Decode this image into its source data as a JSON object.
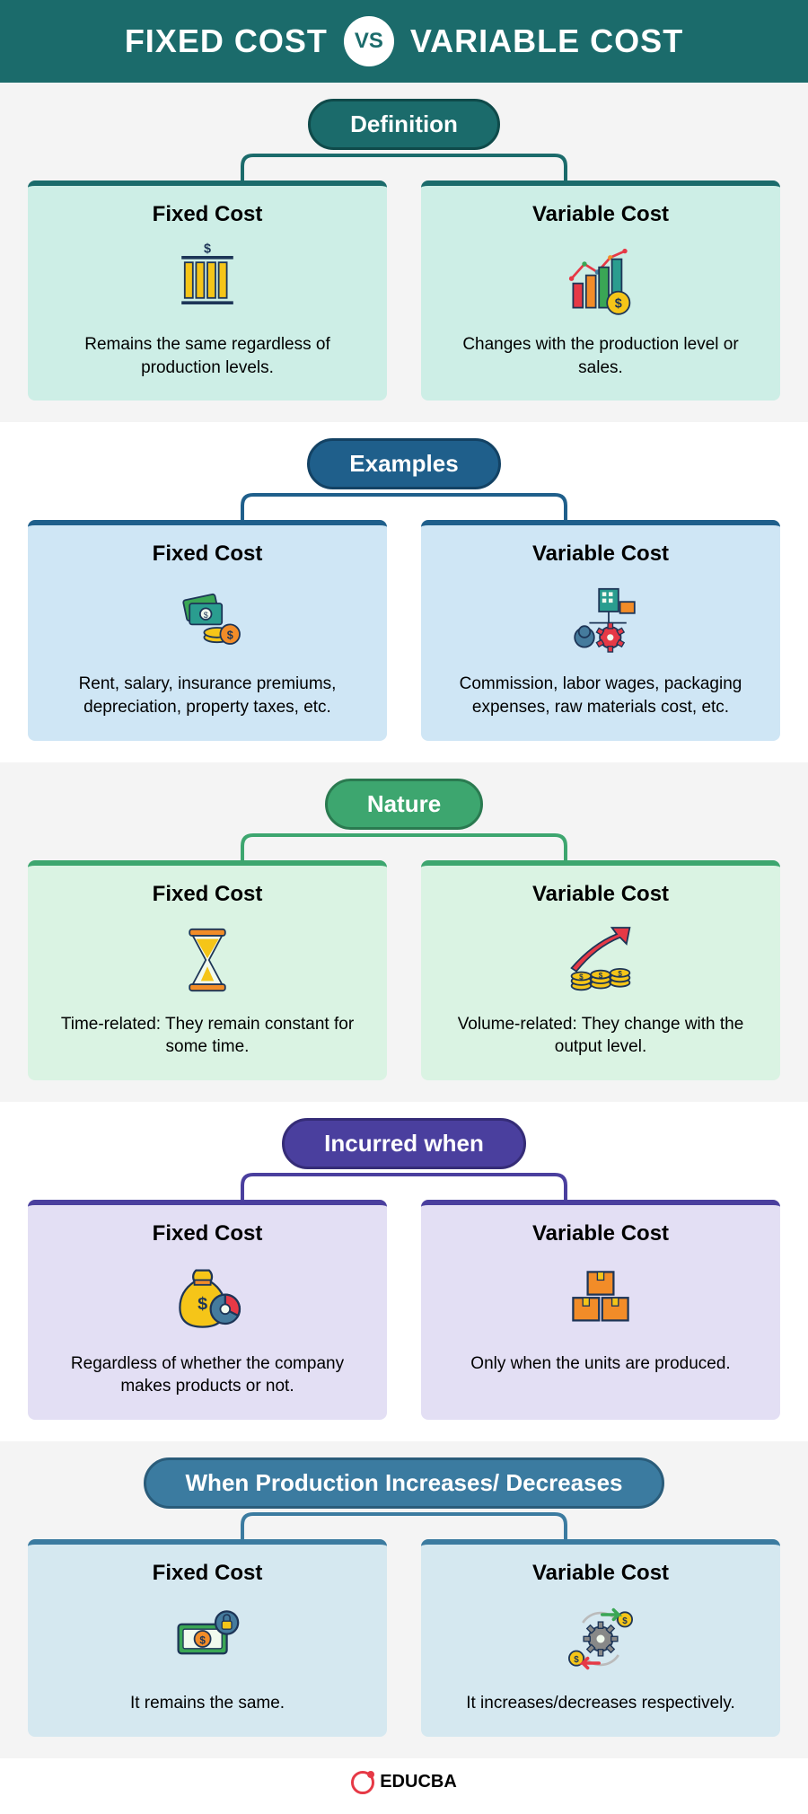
{
  "header": {
    "left": "FIXED COST",
    "vs": "VS",
    "right": "VARIABLE COST",
    "bg": "#1b6b6b",
    "text_color": "#ffffff",
    "vs_color": "#1b6b6b"
  },
  "footer": {
    "brand": "EDUCBA",
    "accent": "#e63946",
    "text_color": "#222222"
  },
  "sections": [
    {
      "label": "Definition",
      "pill_bg": "#1b6b6b",
      "pill_border": "#0f4a4a",
      "section_bg": "#f4f4f4",
      "card_bg": "#cdeee6",
      "card_border": "#1b6b6b",
      "connector_color": "#1b6b6b",
      "left": {
        "title": "Fixed Cost",
        "icon": "bars-dollar",
        "desc": "Remains the same regardless of production levels."
      },
      "right": {
        "title": "Variable Cost",
        "icon": "growth-chart",
        "desc": "Changes with the production level or sales."
      }
    },
    {
      "label": "Examples",
      "pill_bg": "#1f5f8b",
      "pill_border": "#134264",
      "section_bg": "#ffffff",
      "card_bg": "#cfe6f5",
      "card_border": "#1f5f8b",
      "connector_color": "#1f5f8b",
      "left": {
        "title": "Fixed Cost",
        "icon": "money-coins",
        "desc": "Rent, salary, insurance premiums, depreciation, property taxes, etc."
      },
      "right": {
        "title": "Variable Cost",
        "icon": "factory-gear",
        "desc": "Commission, labor wages, packaging expenses, raw materials cost, etc."
      }
    },
    {
      "label": "Nature",
      "pill_bg": "#3da66f",
      "pill_border": "#2a7a50",
      "section_bg": "#f4f4f4",
      "card_bg": "#daf3e3",
      "card_border": "#3da66f",
      "connector_color": "#3da66f",
      "left": {
        "title": "Fixed Cost",
        "icon": "hourglass",
        "desc": "Time-related: They remain constant for some time."
      },
      "right": {
        "title": "Variable Cost",
        "icon": "coins-arrow",
        "desc": "Volume-related: They change with the output level."
      }
    },
    {
      "label": "Incurred when",
      "pill_bg": "#4a3f9e",
      "pill_border": "#352c77",
      "section_bg": "#ffffff",
      "card_bg": "#e3dff4",
      "card_border": "#4a3f9e",
      "connector_color": "#4a3f9e",
      "left": {
        "title": "Fixed Cost",
        "icon": "moneybag-pie",
        "desc": "Regardless of whether the company makes products or not."
      },
      "right": {
        "title": "Variable Cost",
        "icon": "boxes",
        "desc": "Only when the units are produced."
      }
    },
    {
      "label": "When Production Increases/ Decreases",
      "pill_bg": "#3b7ba0",
      "pill_border": "#2a5c7a",
      "section_bg": "#f4f4f4",
      "card_bg": "#d5e8f0",
      "card_border": "#3b7ba0",
      "connector_color": "#3b7ba0",
      "left": {
        "title": "Fixed Cost",
        "icon": "bill-lock",
        "desc": "It remains the same."
      },
      "right": {
        "title": "Variable Cost",
        "icon": "gear-cycle",
        "desc": "It increases/decreases respectively."
      }
    }
  ],
  "icon_palette": {
    "yellow": "#f5c518",
    "orange": "#f28c28",
    "green": "#3aa655",
    "teal": "#2a9d8f",
    "red": "#e63946",
    "blue": "#457b9d",
    "dark": "#1d3557",
    "purple": "#6a4c93",
    "light": "#f1faee"
  }
}
